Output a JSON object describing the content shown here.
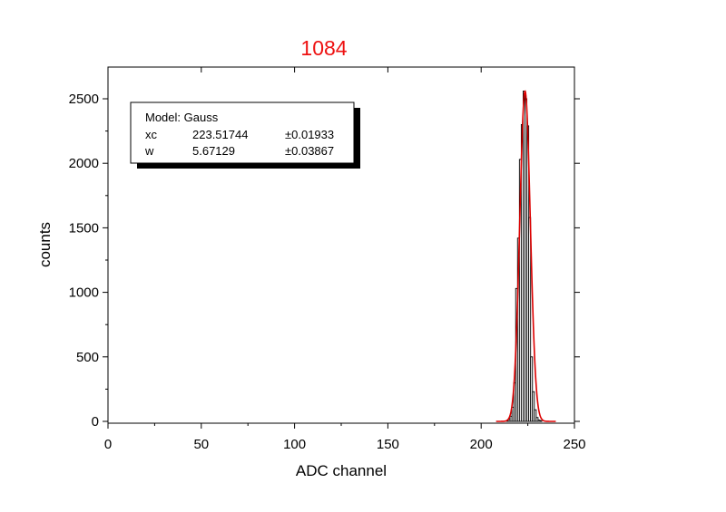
{
  "chart_data": {
    "type": "bar",
    "title": "1084",
    "title_color": "#ee1111",
    "xlabel": "ADC channel",
    "ylabel": "counts",
    "xlim": [
      0,
      250
    ],
    "ylim": [
      0,
      2600
    ],
    "x_ticks": [
      0,
      50,
      100,
      150,
      200,
      250
    ],
    "y_ticks": [
      0,
      500,
      1000,
      1500,
      2000,
      2500
    ],
    "grid": false,
    "bar_color": "#000000",
    "fit_color": "#dd0000",
    "bins": {
      "x": [
        211,
        212,
        213,
        214,
        215,
        216,
        217,
        218,
        219,
        220,
        221,
        222,
        223,
        224,
        225,
        226,
        227,
        228,
        229,
        230,
        231,
        232,
        233,
        234,
        235,
        236
      ],
      "counts": [
        0,
        0,
        0,
        5,
        15,
        40,
        110,
        300,
        1030,
        1420,
        2030,
        2300,
        2560,
        2500,
        2290,
        1580,
        500,
        230,
        90,
        30,
        10,
        5,
        0,
        0,
        0,
        0
      ]
    },
    "fit": {
      "model": "Gauss",
      "params": [
        {
          "name": "xc",
          "value": "223.51744",
          "error": "±0.01933",
          "value_num": 223.51744
        },
        {
          "name": "w",
          "value": "5.67129",
          "error": "±0.03867",
          "value_num": 5.67129
        }
      ],
      "peak": 2560
    },
    "legend": {
      "placement": "top-left",
      "header": "Model: Gauss"
    }
  }
}
